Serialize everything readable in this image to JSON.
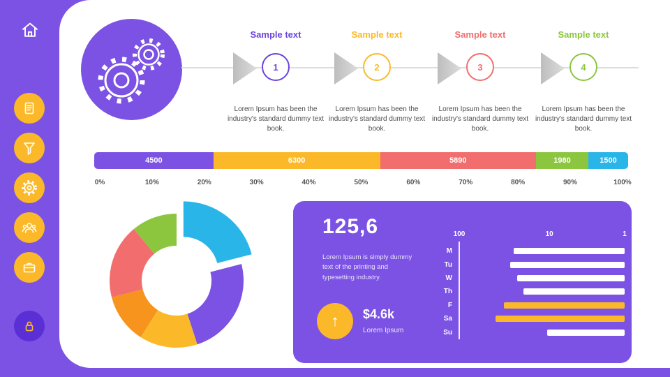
{
  "colors": {
    "purple": "#7B52E3",
    "purple_deep": "#5A2FD6",
    "yellow": "#FBB929",
    "orange": "#F7941E",
    "red": "#F26D6D",
    "green": "#8CC63F",
    "cyan": "#29B5E8",
    "arrow_gray": "#CCCCCC",
    "text_gray": "#4D4D4D"
  },
  "sidebar": {
    "items": [
      {
        "icon": "home-icon"
      },
      {
        "icon": "document-icon"
      },
      {
        "icon": "funnel-icon"
      },
      {
        "icon": "gear-icon"
      },
      {
        "icon": "users-icon"
      },
      {
        "icon": "briefcase-icon"
      },
      {
        "icon": "lock-icon"
      }
    ]
  },
  "timeline": {
    "steps": [
      {
        "title": "Sample text",
        "number": "1",
        "color": "#6C43DC",
        "desc": "Lorem Ipsum has been the industry's standard dummy text book."
      },
      {
        "title": "Sample text",
        "number": "2",
        "color": "#FBB929",
        "desc": "Lorem Ipsum has been the industry's standard dummy text book."
      },
      {
        "title": "Sample text",
        "number": "3",
        "color": "#F26D6D",
        "desc": "Lorem Ipsum has been the industry's standard dummy text book."
      },
      {
        "title": "Sample text",
        "number": "4",
        "color": "#8CC63F",
        "desc": "Lorem Ipsum has been the industry's standard dummy text book."
      }
    ]
  },
  "panel": {
    "big_number": "125,6",
    "description": "Lorem Ipsum is simply dummy text of the printing and typesetting industry.",
    "stat_value": "$4.6k",
    "stat_label": "Lorem Ipsum",
    "arrow_icon": "↑"
  },
  "chart_data": [
    {
      "id": "stacked",
      "type": "bar",
      "stacked": true,
      "orientation": "horizontal",
      "segments": [
        {
          "label": "4500",
          "value": 4500,
          "color": "#7B52E3"
        },
        {
          "label": "6300",
          "value": 6300,
          "color": "#FBB929"
        },
        {
          "label": "5890",
          "value": 5890,
          "color": "#F26D6D"
        },
        {
          "label": "1980",
          "value": 1980,
          "color": "#8CC63F"
        },
        {
          "label": "1500",
          "value": 1500,
          "color": "#29B5E8"
        }
      ],
      "axis_ticks": [
        "0%",
        "10%",
        "20%",
        "30%",
        "40%",
        "50%",
        "60%",
        "70%",
        "80%",
        "90%",
        "100%"
      ]
    },
    {
      "id": "donut",
      "type": "pie",
      "donut": true,
      "slices": [
        {
          "color": "#29B5E8",
          "value": 21,
          "exploded": true
        },
        {
          "color": "#7B52E3",
          "value": 24
        },
        {
          "color": "#FBB929",
          "value": 14
        },
        {
          "color": "#F7941E",
          "value": 12
        },
        {
          "color": "#F26D6D",
          "value": 18
        },
        {
          "color": "#8CC63F",
          "value": 11
        }
      ]
    },
    {
      "id": "weekly",
      "type": "bar",
      "orientation": "horizontal",
      "scale": "log-reversed",
      "categories": [
        "M",
        "Tu",
        "W",
        "Th",
        "F",
        "Sa",
        "Su"
      ],
      "lengths_pct": [
        67,
        69,
        65,
        61,
        73,
        78,
        47
      ],
      "colors": [
        "#FFFFFF",
        "#FFFFFF",
        "#FFFFFF",
        "#FFFFFF",
        "#FBB929",
        "#FBB929",
        "#FFFFFF"
      ],
      "axis_labels": [
        "100",
        "10",
        "1"
      ]
    }
  ]
}
